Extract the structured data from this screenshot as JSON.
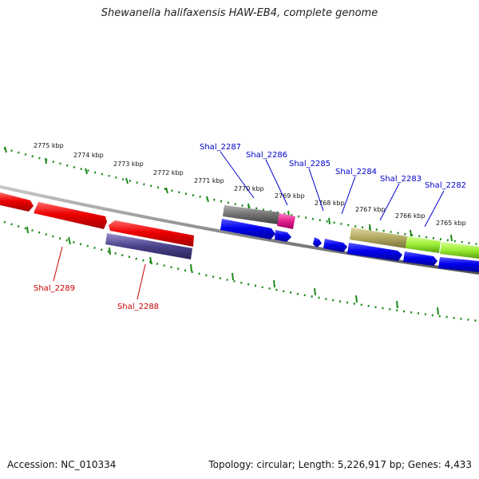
{
  "title": "Shewanella halifaxensis HAW-EB4, complete genome",
  "accession": "Accession: NC_010334",
  "summary": "Topology: circular; Length: 5,226,917 bp; Genes: 4,433",
  "colors": {
    "backbone": "#888888",
    "ticks": "#1a8a1a",
    "forward_cds": "#0000ee",
    "reverse_cds": "#ee0000",
    "label_forward": "#0000cc",
    "label_reverse": "#cc0000"
  },
  "kbp_labels": [
    "2775 kbp",
    "2774 kbp",
    "2773 kbp",
    "2772 kbp",
    "2771 kbp",
    "2770 kbp",
    "2769 kbp",
    "2768 kbp",
    "2767 kbp",
    "2766 kbp",
    "2765 kbp"
  ],
  "gene_labels_top": [
    "Shal_2287",
    "Shal_2286",
    "Shal_2285",
    "Shal_2284",
    "Shal_2283",
    "Shal_2282"
  ],
  "gene_labels_bottom": [
    "Shal_2289",
    "Shal_2288"
  ]
}
